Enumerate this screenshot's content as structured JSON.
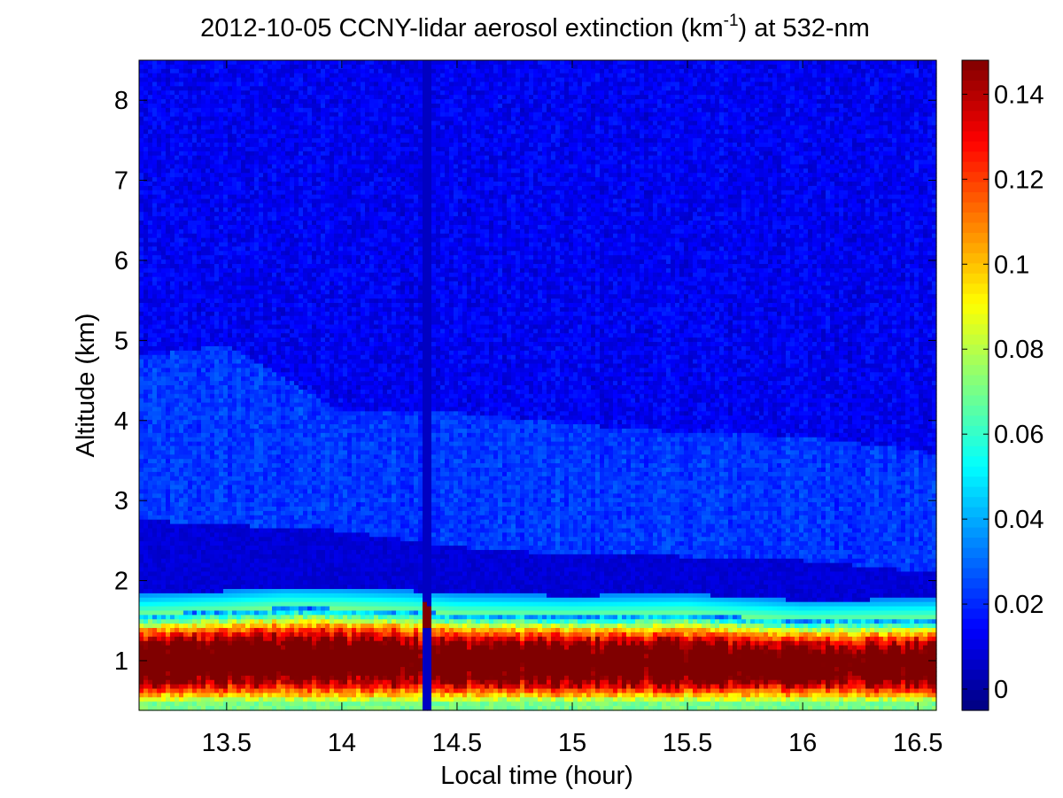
{
  "chart_data": {
    "type": "heatmap",
    "title_main": "2012-10-05 CCNY-lidar aerosol extinction (km",
    "title_sup": "-1",
    "title_tail": ") at 532-nm",
    "xlabel": "Local time (hour)",
    "ylabel": "Altitude (km)",
    "xlim": [
      13.12,
      16.58
    ],
    "ylim": [
      0.38,
      8.5
    ],
    "xticks": [
      13.5,
      14,
      14.5,
      15,
      15.5,
      16,
      16.5
    ],
    "xtick_labels": [
      "13.5",
      "14",
      "14.5",
      "15",
      "15.5",
      "16",
      "16.5"
    ],
    "yticks": [
      1,
      2,
      3,
      4,
      5,
      6,
      7,
      8
    ],
    "ytick_labels": [
      "1",
      "2",
      "3",
      "4",
      "5",
      "6",
      "7",
      "8"
    ],
    "colorbar": {
      "colormap": "jet",
      "clim": [
        -0.005,
        0.148
      ],
      "ticks": [
        0,
        0.02,
        0.04,
        0.06,
        0.08,
        0.1,
        0.12,
        0.14
      ],
      "tick_labels": [
        "0",
        "0.02",
        "0.04",
        "0.06",
        "0.08",
        "0.1",
        "0.12",
        "0.14"
      ]
    },
    "grid": false,
    "boundary_layer_top_km": [
      {
        "x": 13.15,
        "y": 1.68
      },
      {
        "x": 13.5,
        "y": 1.72
      },
      {
        "x": 13.75,
        "y": 1.76
      },
      {
        "x": 14.0,
        "y": 1.75
      },
      {
        "x": 14.3,
        "y": 1.72
      },
      {
        "x": 14.5,
        "y": 1.68
      },
      {
        "x": 15.0,
        "y": 1.66
      },
      {
        "x": 15.5,
        "y": 1.68
      },
      {
        "x": 16.0,
        "y": 1.6
      },
      {
        "x": 16.55,
        "y": 1.62
      }
    ],
    "boundary_layer_peak_extinction": 0.13,
    "residual_layer_top_km": [
      {
        "x": 13.15,
        "y": 2.75
      },
      {
        "x": 14.0,
        "y": 2.62
      },
      {
        "x": 14.5,
        "y": 2.42
      },
      {
        "x": 15.0,
        "y": 2.32
      },
      {
        "x": 15.5,
        "y": 2.3
      },
      {
        "x": 16.0,
        "y": 2.25
      },
      {
        "x": 16.55,
        "y": 2.1
      }
    ],
    "upper_layer_top_km": [
      {
        "x": 13.15,
        "y": 4.8
      },
      {
        "x": 13.5,
        "y": 4.95
      },
      {
        "x": 14.0,
        "y": 4.1
      },
      {
        "x": 14.5,
        "y": 4.1
      },
      {
        "x": 15.0,
        "y": 3.95
      },
      {
        "x": 15.5,
        "y": 3.85
      },
      {
        "x": 16.0,
        "y": 3.8
      },
      {
        "x": 16.55,
        "y": 3.6
      }
    ],
    "free_troposphere_extinction": 0.012,
    "data_gap_hour": 14.37
  }
}
